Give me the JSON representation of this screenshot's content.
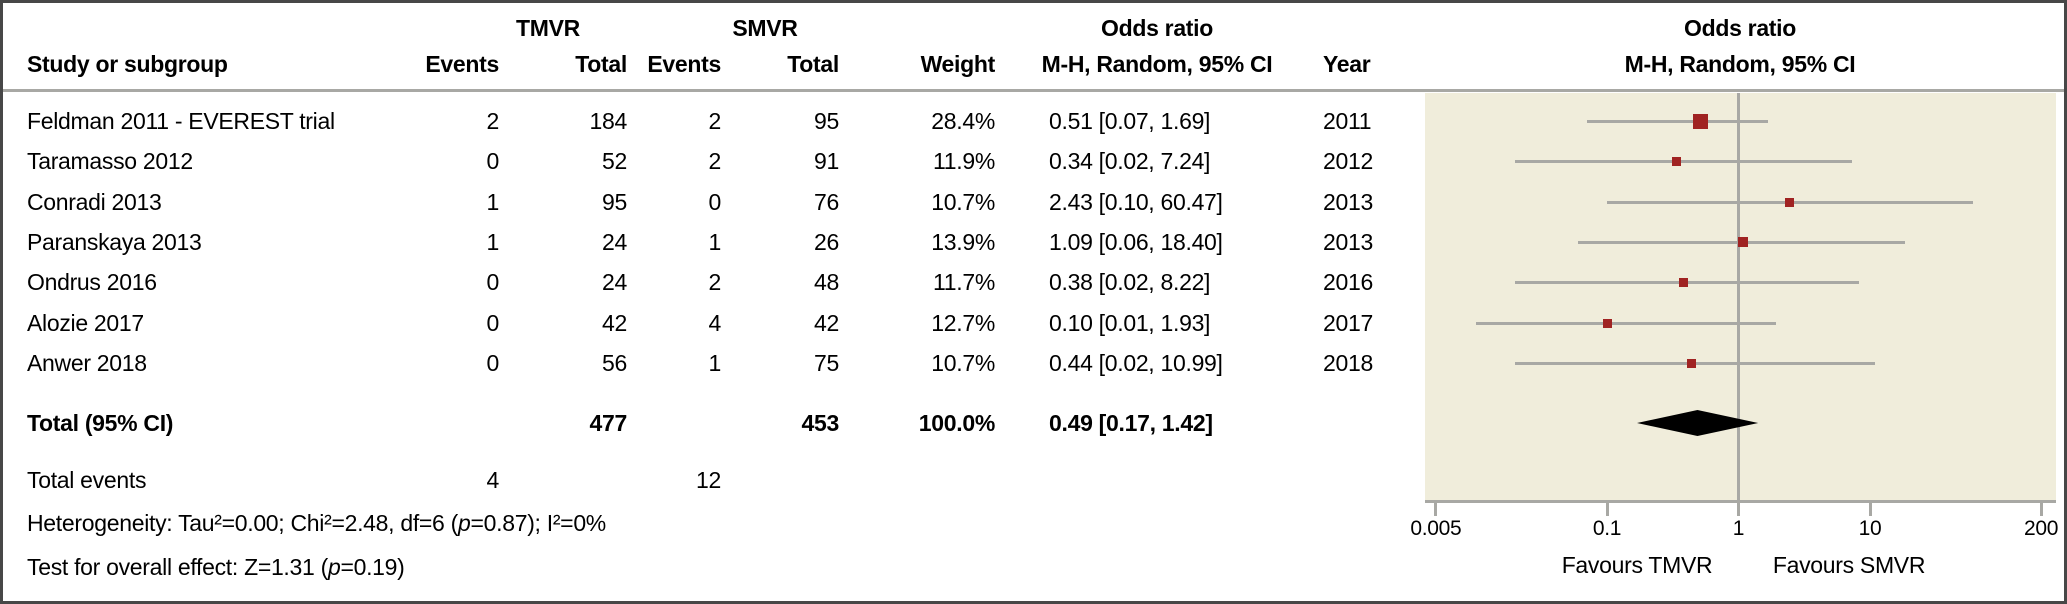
{
  "header": {
    "study": "Study or subgroup",
    "group1": "TMVR",
    "group2": "SMVR",
    "events": "Events",
    "total": "Total",
    "weight": "Weight",
    "or_title": "Odds ratio",
    "or_subtitle": "M-H, Random, 95% CI",
    "year": "Year",
    "plot_title": "Odds ratio",
    "plot_subtitle": "M-H, Random, 95% CI"
  },
  "rows": [
    {
      "study": "Feldman 2011 - EVEREST trial",
      "tmvr_events": "2",
      "tmvr_total": "184",
      "smvr_events": "2",
      "smvr_total": "95",
      "weight": "28.4%",
      "or_ci": "0.51 [0.07, 1.69]",
      "year": "2011"
    },
    {
      "study": "Taramasso 2012",
      "tmvr_events": "0",
      "tmvr_total": "52",
      "smvr_events": "2",
      "smvr_total": "91",
      "weight": "11.9%",
      "or_ci": "0.34 [0.02, 7.24]",
      "year": "2012"
    },
    {
      "study": "Conradi 2013",
      "tmvr_events": "1",
      "tmvr_total": "95",
      "smvr_events": "0",
      "smvr_total": "76",
      "weight": "10.7%",
      "or_ci": "2.43 [0.10, 60.47]",
      "year": "2013"
    },
    {
      "study": "Paranskaya 2013",
      "tmvr_events": "1",
      "tmvr_total": "24",
      "smvr_events": "1",
      "smvr_total": "26",
      "weight": "13.9%",
      "or_ci": "1.09 [0.06, 18.40]",
      "year": "2013"
    },
    {
      "study": "Ondrus 2016",
      "tmvr_events": "0",
      "tmvr_total": "24",
      "smvr_events": "2",
      "smvr_total": "48",
      "weight": "11.7%",
      "or_ci": "0.38 [0.02, 8.22]",
      "year": "2016"
    },
    {
      "study": "Alozie 2017",
      "tmvr_events": "0",
      "tmvr_total": "42",
      "smvr_events": "4",
      "smvr_total": "42",
      "weight": "12.7%",
      "or_ci": "0.10 [0.01, 1.93]",
      "year": "2017"
    },
    {
      "study": "Anwer 2018",
      "tmvr_events": "0",
      "tmvr_total": "56",
      "smvr_events": "1",
      "smvr_total": "75",
      "weight": "10.7%",
      "or_ci": "0.44 [0.02, 10.99]",
      "year": "2018"
    }
  ],
  "total_row": {
    "label": "Total (95% CI)",
    "tmvr_total": "477",
    "smvr_total": "453",
    "weight": "100.0%",
    "or_ci": "0.49 [0.17, 1.42]"
  },
  "total_events": {
    "label": "Total events",
    "tmvr": "4",
    "smvr": "12"
  },
  "heterogeneity": {
    "pre": "Heterogeneity: Tau²=0.00; Chi²=2.48, df=6 (",
    "p": "p",
    "post": "=0.87); I²=0%"
  },
  "overall_effect": {
    "pre": "Test for overall effect: Z=1.31 (",
    "p": "p",
    "post": "=0.19)"
  },
  "chart_data": {
    "type": "forest",
    "title": "Odds ratio",
    "subtitle": "M-H, Random, 95% CI",
    "x_scale": "log",
    "x_ticks": [
      0.005,
      0.1,
      1,
      10,
      200
    ],
    "x_tick_labels": [
      "0.005",
      "0.1",
      "1",
      "10",
      "200"
    ],
    "x_range": [
      0.004,
      250
    ],
    "null_line": 1,
    "favours_left": "Favours TMVR",
    "favours_right": "Favours SMVR",
    "studies": [
      {
        "name": "Feldman 2011 - EVEREST trial",
        "year": 2011,
        "tmvr_events": 2,
        "tmvr_total": 184,
        "smvr_events": 2,
        "smvr_total": 95,
        "weight_pct": 28.4,
        "or": 0.51,
        "ci_low": 0.07,
        "ci_high": 1.69
      },
      {
        "name": "Taramasso 2012",
        "year": 2012,
        "tmvr_events": 0,
        "tmvr_total": 52,
        "smvr_events": 2,
        "smvr_total": 91,
        "weight_pct": 11.9,
        "or": 0.34,
        "ci_low": 0.02,
        "ci_high": 7.24
      },
      {
        "name": "Conradi 2013",
        "year": 2013,
        "tmvr_events": 1,
        "tmvr_total": 95,
        "smvr_events": 0,
        "smvr_total": 76,
        "weight_pct": 10.7,
        "or": 2.43,
        "ci_low": 0.1,
        "ci_high": 60.47
      },
      {
        "name": "Paranskaya 2013",
        "year": 2013,
        "tmvr_events": 1,
        "tmvr_total": 24,
        "smvr_events": 1,
        "smvr_total": 26,
        "weight_pct": 13.9,
        "or": 1.09,
        "ci_low": 0.06,
        "ci_high": 18.4
      },
      {
        "name": "Ondrus 2016",
        "year": 2016,
        "tmvr_events": 0,
        "tmvr_total": 24,
        "smvr_events": 2,
        "smvr_total": 48,
        "weight_pct": 11.7,
        "or": 0.38,
        "ci_low": 0.02,
        "ci_high": 8.22
      },
      {
        "name": "Alozie 2017",
        "year": 2017,
        "tmvr_events": 0,
        "tmvr_total": 42,
        "smvr_events": 4,
        "smvr_total": 42,
        "weight_pct": 12.7,
        "or": 0.1,
        "ci_low": 0.01,
        "ci_high": 1.93
      },
      {
        "name": "Anwer 2018",
        "year": 2018,
        "tmvr_events": 0,
        "tmvr_total": 56,
        "smvr_events": 1,
        "smvr_total": 75,
        "weight_pct": 10.7,
        "or": 0.44,
        "ci_low": 0.02,
        "ci_high": 10.99
      }
    ],
    "total": {
      "label": "Total (95% CI)",
      "tmvr_total": 477,
      "smvr_total": 453,
      "weight_pct": 100.0,
      "or": 0.49,
      "ci_low": 0.17,
      "ci_high": 1.42
    },
    "colors": {
      "marker": "#a02322",
      "diamond": "#000000",
      "line": "#a8a8a4",
      "panel_bg": "#f0eddb",
      "border": "#474747"
    }
  }
}
